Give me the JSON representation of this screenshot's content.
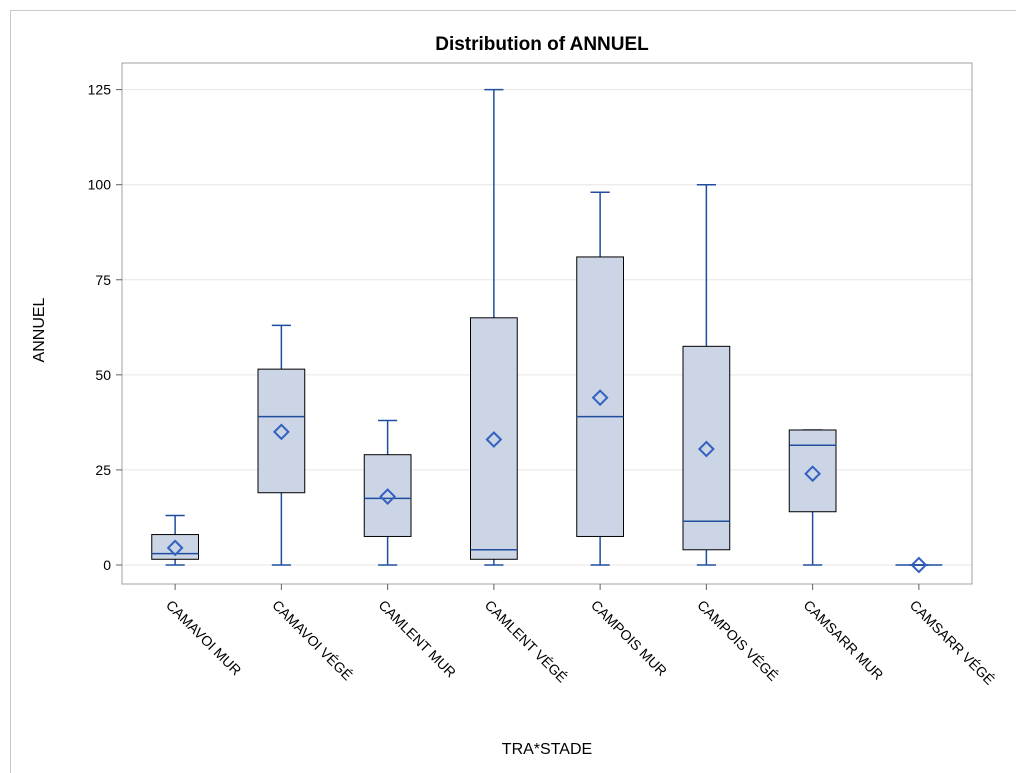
{
  "chart_data": {
    "type": "box",
    "title": "Distribution of ANNUEL",
    "xlabel": "TRA*STADE",
    "ylabel": "ANNUEL",
    "ylim": [
      -5,
      132
    ],
    "yticks": [
      0,
      25,
      50,
      75,
      100,
      125
    ],
    "grid": true,
    "colors": {
      "fill": "#cbd5e6",
      "whisker": "#1f4e9e",
      "box_border": "#000000",
      "mean_marker": "#3461c0"
    },
    "categories": [
      "CAMAVOI MUR",
      "CAMAVOI VÉGÉ",
      "CAMLENT MUR",
      "CAMLENT VÉGÉ",
      "CAMPOIS MUR",
      "CAMPOIS VÉGÉ",
      "CAMSARR MUR",
      "CAMSARR VÉGÉ"
    ],
    "boxes": [
      {
        "min": 0,
        "q1": 1.5,
        "median": 3,
        "q3": 8,
        "max": 13,
        "mean": 4.5
      },
      {
        "min": 0,
        "q1": 19,
        "median": 39,
        "q3": 51.5,
        "max": 63,
        "mean": 35
      },
      {
        "min": 0,
        "q1": 7.5,
        "median": 17.5,
        "q3": 29,
        "max": 38,
        "mean": 18
      },
      {
        "min": 0,
        "q1": 1.5,
        "median": 4,
        "q3": 65,
        "max": 125,
        "mean": 33
      },
      {
        "min": 0,
        "q1": 7.5,
        "median": 39,
        "q3": 81,
        "max": 98,
        "mean": 44
      },
      {
        "min": 0,
        "q1": 4,
        "median": 11.5,
        "q3": 57.5,
        "max": 100,
        "mean": 30.5
      },
      {
        "min": 0,
        "q1": 14,
        "median": 31.5,
        "q3": 35.5,
        "max": 35.5,
        "mean": 24
      },
      {
        "min": 0,
        "q1": 0,
        "median": 0,
        "q3": 0,
        "max": 0,
        "mean": 0
      }
    ]
  }
}
